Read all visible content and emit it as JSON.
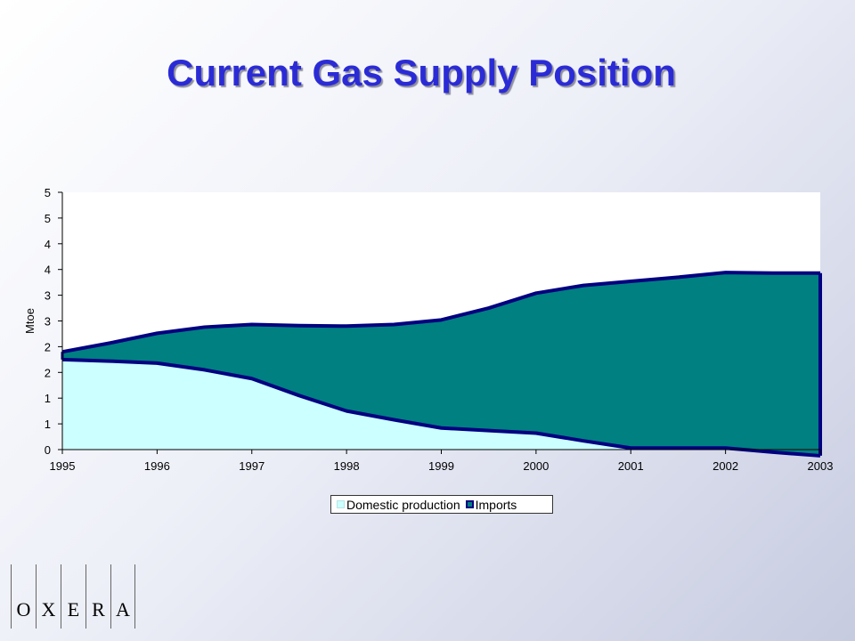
{
  "title": "Current Gas Supply Position",
  "chart_data": {
    "type": "area",
    "stacked": true,
    "x": [
      1995,
      1995.5,
      1996,
      1996.5,
      1997,
      1997.5,
      1998,
      1998.5,
      1999,
      1999.5,
      2000,
      2000.5,
      2001,
      2001.5,
      2002,
      2002.5,
      2003
    ],
    "xticks": [
      "1995",
      "1996",
      "1997",
      "1998",
      "1999",
      "2000",
      "2001",
      "2002",
      "2003"
    ],
    "series": [
      {
        "name": "Domestic production",
        "color": "#ccffff",
        "values": [
          1.75,
          1.72,
          1.68,
          1.55,
          1.38,
          1.05,
          0.75,
          0.58,
          0.42,
          0.37,
          0.32,
          0.17,
          0.03,
          0.03,
          0.03,
          -0.05,
          -0.12
        ]
      },
      {
        "name": "Imports",
        "color": "#008080",
        "values": [
          0.15,
          0.35,
          0.58,
          0.83,
          1.05,
          1.36,
          1.65,
          1.85,
          2.1,
          2.38,
          2.72,
          3.02,
          3.24,
          3.32,
          3.41,
          3.48,
          3.55
        ]
      }
    ],
    "total_line_values": [
      1.9,
      2.07,
      2.26,
      2.38,
      2.43,
      2.41,
      2.4,
      2.43,
      2.52,
      2.75,
      3.04,
      3.19,
      3.27,
      3.35,
      3.44,
      3.43,
      3.43
    ],
    "ylabel": "Mtoe",
    "ylim": [
      0,
      5
    ],
    "ytick_labels": [
      "0",
      "1",
      "1",
      "2",
      "2",
      "3",
      "3",
      "4",
      "4",
      "5",
      "5"
    ],
    "legend_position": "bottom",
    "outline_color": "#000080"
  },
  "legend": {
    "domestic_label": "Domestic production",
    "imports_label": "Imports"
  },
  "logo": {
    "letters": [
      "O",
      "X",
      "E",
      "R",
      "A"
    ]
  }
}
